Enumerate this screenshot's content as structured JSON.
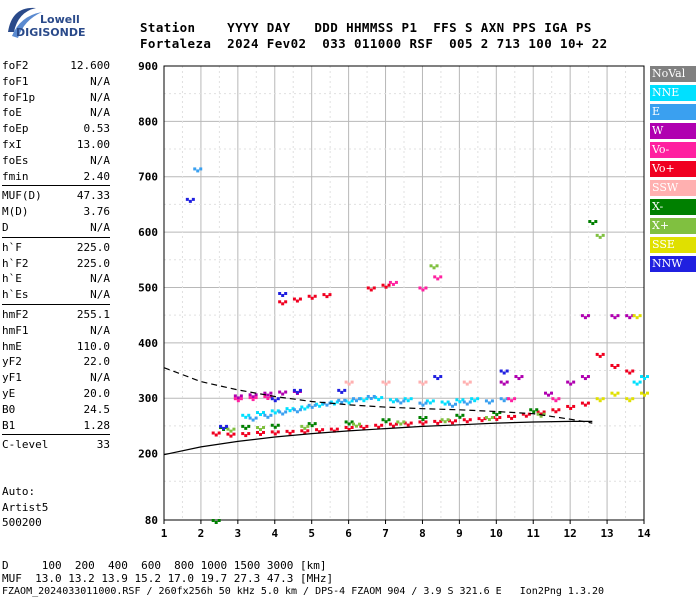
{
  "logo": {
    "top": "Lowell",
    "main": "DIGISONDE"
  },
  "header": {
    "line1": "Station    YYYY DAY   DDD HHMMSS P1  FFS S AXN PPS IGA PS",
    "line2": "Fortaleza  2024 Fev02  033 011000 RSF  005 2 713 100 10+ 22"
  },
  "params": [
    {
      "name": "foF2",
      "value": "12.600"
    },
    {
      "name": "foF1",
      "value": "N/A"
    },
    {
      "name": "foF1p",
      "value": "N/A"
    },
    {
      "name": "foE",
      "value": "N/A"
    },
    {
      "name": "foEp",
      "value": "0.53"
    },
    {
      "name": "fxI",
      "value": "13.00"
    },
    {
      "name": "foEs",
      "value": "N/A"
    },
    {
      "name": "fmin",
      "value": "2.40"
    },
    {
      "sep": true
    },
    {
      "name": "MUF(D)",
      "value": "47.33"
    },
    {
      "name": "M(D)",
      "value": "3.76"
    },
    {
      "name": "D",
      "value": "N/A"
    },
    {
      "sep": true
    },
    {
      "name": "h`F",
      "value": "225.0"
    },
    {
      "name": "h`F2",
      "value": "225.0"
    },
    {
      "name": "h`E",
      "value": "N/A"
    },
    {
      "name": "h`Es",
      "value": "N/A"
    },
    {
      "sep": true
    },
    {
      "name": "hmF2",
      "value": "255.1"
    },
    {
      "name": "hmF1",
      "value": "N/A"
    },
    {
      "name": "hmE",
      "value": "110.0"
    },
    {
      "name": "yF2",
      "value": "22.0"
    },
    {
      "name": "yF1",
      "value": "N/A"
    },
    {
      "name": "yE",
      "value": "20.0"
    },
    {
      "name": "B0",
      "value": "24.5"
    },
    {
      "name": "B1",
      "value": "1.28"
    },
    {
      "sep": true
    },
    {
      "name": "C-level",
      "value": "33"
    }
  ],
  "extra": {
    "auto": "Auto:",
    "artist": "Artist5",
    "code": "500200"
  },
  "legend": [
    {
      "label": "NoVal",
      "bg": "#808080",
      "fg": "#ffffff"
    },
    {
      "label": "NNE",
      "bg": "#00e0ff",
      "fg": "#ffffff"
    },
    {
      "label": "E",
      "bg": "#3aa0f0",
      "fg": "#ffffff"
    },
    {
      "label": "W",
      "bg": "#b000b0",
      "fg": "#ffffff"
    },
    {
      "label": "Vo-",
      "bg": "#ff20a0",
      "fg": "#ffffff"
    },
    {
      "label": "Vo+",
      "bg": "#f00020",
      "fg": "#ffffff"
    },
    {
      "label": "SSW",
      "bg": "#ffb0b0",
      "fg": "#ffffff"
    },
    {
      "label": "X-",
      "bg": "#008000",
      "fg": "#ffffff"
    },
    {
      "label": "X+",
      "bg": "#80c040",
      "fg": "#ffffff"
    },
    {
      "label": "SSE",
      "bg": "#e0e000",
      "fg": "#ffffff"
    },
    {
      "label": "NNW",
      "bg": "#2020e0",
      "fg": "#ffffff"
    }
  ],
  "footer": {
    "line1": "D     100  200  400  600  800 1000 1500 3000 [km]",
    "line2": "MUF  13.0 13.2 13.9 15.2 17.0 19.7 27.3 47.3 [MHz]",
    "line3": "FZAOM_2024033011000.RSF / 260fx256h 50 kHz 5.0 km / DPS-4 FZAOM 904 / 3.9 S 321.6 E   Ion2Png 1.3.20"
  },
  "chart_data": {
    "type": "scatter",
    "xlim": [
      1,
      14
    ],
    "ylim": [
      80,
      900
    ],
    "xticks": [
      1,
      2,
      3,
      4,
      5,
      6,
      7,
      8,
      9,
      10,
      11,
      12,
      13,
      14
    ],
    "yticks": [
      80,
      200,
      300,
      400,
      500,
      600,
      700,
      800,
      900
    ],
    "grid": true,
    "series": [
      {
        "name": "Vo+",
        "color": "#f00020",
        "points": [
          [
            2.4,
            238
          ],
          [
            2.8,
            236
          ],
          [
            3.2,
            237
          ],
          [
            3.6,
            239
          ],
          [
            4.0,
            240
          ],
          [
            4.4,
            241
          ],
          [
            4.8,
            242
          ],
          [
            5.2,
            244
          ],
          [
            5.6,
            245
          ],
          [
            6.0,
            248
          ],
          [
            6.4,
            250
          ],
          [
            6.8,
            252
          ],
          [
            7.2,
            254
          ],
          [
            7.6,
            256
          ],
          [
            8.0,
            258
          ],
          [
            8.4,
            259
          ],
          [
            8.8,
            260
          ],
          [
            9.2,
            262
          ],
          [
            9.6,
            264
          ],
          [
            10.0,
            266
          ],
          [
            10.4,
            268
          ],
          [
            10.8,
            272
          ],
          [
            11.2,
            276
          ],
          [
            11.6,
            280
          ],
          [
            12.0,
            286
          ],
          [
            12.4,
            292
          ],
          [
            4.2,
            475
          ],
          [
            4.6,
            480
          ],
          [
            5.0,
            485
          ],
          [
            5.4,
            488
          ],
          [
            6.6,
            500
          ],
          [
            7.0,
            505
          ],
          [
            12.8,
            380
          ],
          [
            13.2,
            360
          ],
          [
            13.6,
            350
          ]
        ]
      },
      {
        "name": "NNE",
        "color": "#00e0ff",
        "points": [
          [
            3.2,
            270
          ],
          [
            3.6,
            275
          ],
          [
            4.0,
            278
          ],
          [
            4.4,
            282
          ],
          [
            4.8,
            285
          ],
          [
            5.2,
            290
          ],
          [
            5.6,
            294
          ],
          [
            6.0,
            296
          ],
          [
            6.4,
            300
          ],
          [
            6.8,
            302
          ],
          [
            7.2,
            298
          ],
          [
            7.6,
            300
          ],
          [
            8.2,
            296
          ],
          [
            8.6,
            294
          ],
          [
            9.0,
            298
          ],
          [
            9.4,
            300
          ],
          [
            13.8,
            330
          ],
          [
            14.0,
            340
          ]
        ]
      },
      {
        "name": "E",
        "color": "#3aa0f0",
        "points": [
          [
            3.4,
            265
          ],
          [
            3.8,
            270
          ],
          [
            4.2,
            276
          ],
          [
            4.6,
            280
          ],
          [
            5.0,
            288
          ],
          [
            5.4,
            292
          ],
          [
            5.8,
            297
          ],
          [
            6.2,
            300
          ],
          [
            6.6,
            304
          ],
          [
            7.4,
            296
          ],
          [
            8.0,
            292
          ],
          [
            8.8,
            290
          ],
          [
            9.2,
            294
          ],
          [
            9.8,
            296
          ],
          [
            10.2,
            300
          ],
          [
            1.9,
            715
          ]
        ]
      },
      {
        "name": "W",
        "color": "#b000b0",
        "points": [
          [
            3.0,
            305
          ],
          [
            3.4,
            307
          ],
          [
            3.8,
            310
          ],
          [
            4.2,
            312
          ],
          [
            4.6,
            313
          ],
          [
            10.2,
            330
          ],
          [
            10.6,
            340
          ],
          [
            11.4,
            310
          ],
          [
            12.0,
            330
          ],
          [
            12.4,
            340
          ],
          [
            13.2,
            450
          ],
          [
            13.6,
            450
          ],
          [
            12.4,
            450
          ]
        ]
      },
      {
        "name": "Vo-",
        "color": "#ff20a0",
        "points": [
          [
            3.0,
            300
          ],
          [
            3.4,
            302
          ],
          [
            3.8,
            304
          ],
          [
            8.0,
            500
          ],
          [
            8.4,
            520
          ],
          [
            7.2,
            510
          ],
          [
            10.4,
            300
          ],
          [
            11.6,
            300
          ]
        ]
      },
      {
        "name": "SSW",
        "color": "#ffb0b0",
        "points": [
          [
            6.0,
            330
          ],
          [
            7.0,
            330
          ],
          [
            8.0,
            330
          ],
          [
            9.2,
            330
          ]
        ]
      },
      {
        "name": "X-",
        "color": "#008000",
        "points": [
          [
            2.6,
            248
          ],
          [
            3.2,
            250
          ],
          [
            4.0,
            252
          ],
          [
            5.0,
            255
          ],
          [
            6.0,
            258
          ],
          [
            7.0,
            262
          ],
          [
            8.0,
            266
          ],
          [
            9.0,
            270
          ],
          [
            10.0,
            275
          ],
          [
            11.0,
            280
          ],
          [
            12.6,
            620
          ],
          [
            2.4,
            80
          ]
        ]
      },
      {
        "name": "X+",
        "color": "#80c040",
        "points": [
          [
            2.8,
            245
          ],
          [
            3.6,
            248
          ],
          [
            4.8,
            250
          ],
          [
            6.2,
            254
          ],
          [
            7.4,
            258
          ],
          [
            8.6,
            262
          ],
          [
            9.8,
            266
          ],
          [
            11.2,
            272
          ],
          [
            12.8,
            595
          ],
          [
            8.3,
            540
          ]
        ]
      },
      {
        "name": "SSE",
        "color": "#e0e000",
        "points": [
          [
            12.8,
            300
          ],
          [
            13.2,
            310
          ],
          [
            13.6,
            300
          ],
          [
            14.0,
            310
          ],
          [
            13.8,
            450
          ]
        ]
      },
      {
        "name": "NNW",
        "color": "#2020e0",
        "points": [
          [
            4.6,
            315
          ],
          [
            5.8,
            315
          ],
          [
            8.4,
            340
          ],
          [
            10.2,
            350
          ],
          [
            1.7,
            660
          ],
          [
            4.2,
            490
          ],
          [
            4.0,
            300
          ],
          [
            2.6,
            250
          ]
        ]
      }
    ],
    "curves": {
      "dashed": [
        [
          1.0,
          355
        ],
        [
          2.0,
          330
        ],
        [
          3.0,
          315
        ],
        [
          4.0,
          303
        ],
        [
          5.0,
          294
        ],
        [
          6.0,
          288
        ],
        [
          7.0,
          284
        ],
        [
          8.0,
          281
        ],
        [
          9.0,
          279
        ],
        [
          10.0,
          276
        ],
        [
          11.0,
          272
        ],
        [
          12.0,
          262
        ],
        [
          12.6,
          255
        ]
      ],
      "solid": [
        [
          1.0,
          198
        ],
        [
          2.0,
          212
        ],
        [
          3.0,
          222
        ],
        [
          4.0,
          230
        ],
        [
          5.0,
          236
        ],
        [
          6.0,
          241
        ],
        [
          7.0,
          245
        ],
        [
          8.0,
          249
        ],
        [
          9.0,
          252
        ],
        [
          10.0,
          255
        ],
        [
          11.0,
          257
        ],
        [
          12.0,
          258
        ],
        [
          12.6,
          258
        ]
      ]
    }
  }
}
